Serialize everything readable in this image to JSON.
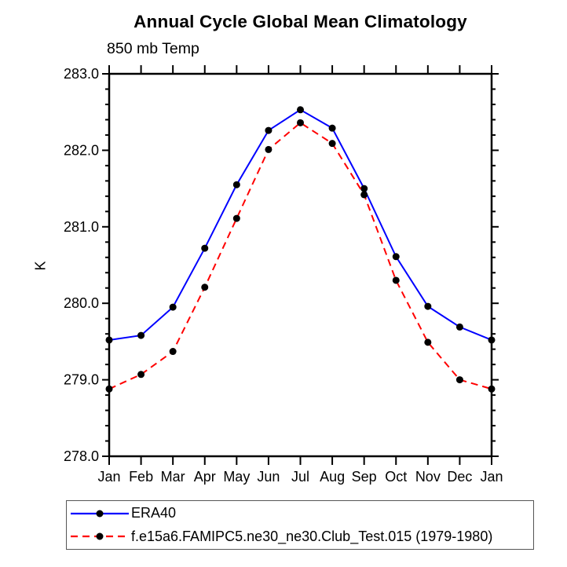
{
  "titles": {
    "main": "Annual Cycle Global Mean Climatology",
    "left": "850 mb Temp"
  },
  "chart_data": {
    "type": "line",
    "title": "Annual Cycle Global Mean Climatology",
    "subtitle": "850 mb Temp",
    "ylabel": "K",
    "xlabel": "",
    "categories": [
      "Jan",
      "Feb",
      "Mar",
      "Apr",
      "May",
      "Jun",
      "Jul",
      "Aug",
      "Sep",
      "Oct",
      "Nov",
      "Dec",
      "Jan"
    ],
    "ylim": [
      278.0,
      283.0
    ],
    "yticks": [
      278,
      279,
      280,
      281,
      282,
      283
    ],
    "ytick_labels": [
      "278.0",
      "279.0",
      "280.0",
      "281.0",
      "282.0",
      "283.0"
    ],
    "y_minor_step": 0.2,
    "grid": false,
    "legend_position": "bottom-left",
    "series": [
      {
        "name": "ERA40",
        "color": "#0000ff",
        "line_style": "solid",
        "marker": "filled-circle",
        "marker_color": "#000000",
        "values": [
          279.52,
          279.58,
          279.95,
          280.72,
          281.55,
          282.26,
          282.53,
          282.29,
          281.5,
          280.61,
          279.96,
          279.69,
          279.52
        ]
      },
      {
        "name": "f.e15a6.FAMIPC5.ne30_ne30.Club_Test.015 (1979-1980)",
        "color": "#ff0000",
        "line_style": "dashed",
        "marker": "filled-circle",
        "marker_color": "#000000",
        "values": [
          278.88,
          279.07,
          279.37,
          280.21,
          281.11,
          282.01,
          282.36,
          282.09,
          281.42,
          280.3,
          279.49,
          279.0,
          278.88
        ]
      }
    ]
  }
}
